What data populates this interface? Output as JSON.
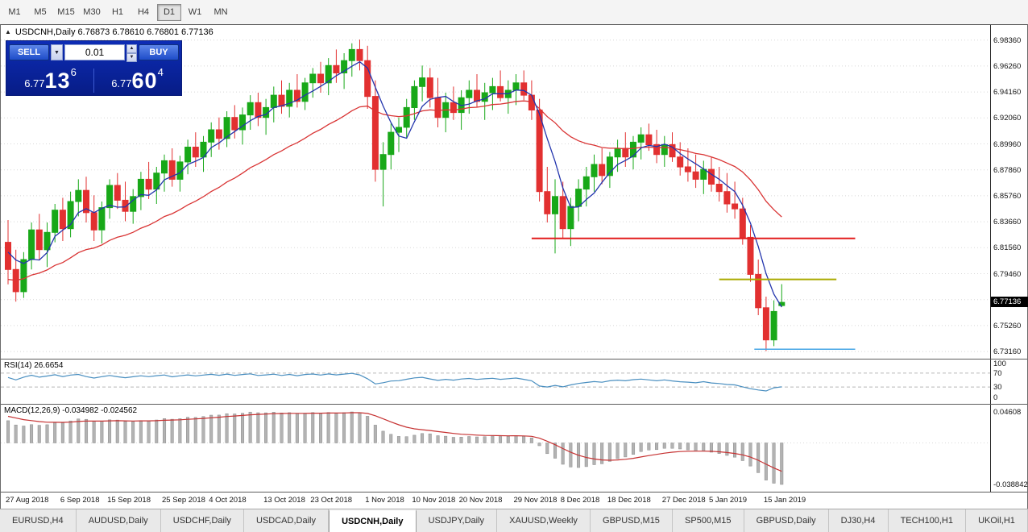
{
  "toolbar": {
    "timeframes": [
      {
        "label": "M1",
        "active": false
      },
      {
        "label": "M5",
        "active": false
      },
      {
        "label": "M15",
        "active": false
      },
      {
        "label": "M30",
        "active": false
      },
      {
        "label": "H1",
        "active": false
      },
      {
        "label": "H4",
        "active": false
      },
      {
        "label": "D1",
        "active": true
      },
      {
        "label": "W1",
        "active": false
      },
      {
        "label": "MN",
        "active": false
      }
    ]
  },
  "chart": {
    "header": "USDCNH,Daily 6.76873 6.78610 6.76801 6.77136",
    "symbol": "USDCNH",
    "period": "Daily",
    "open": "6.76873",
    "high": "6.78610",
    "low": "6.76801",
    "close": "6.77136"
  },
  "trade_panel": {
    "sell_label": "SELL",
    "buy_label": "BUY",
    "lot": "0.01",
    "sell_price": {
      "small": "6.77",
      "big": "13",
      "sup": "6"
    },
    "buy_price": {
      "small": "6.77",
      "big": "60",
      "sup": "4"
    }
  },
  "price_axis": {
    "labels": [
      "6.98360",
      "6.96260",
      "6.94160",
      "6.92060",
      "6.89960",
      "6.87860",
      "6.85760",
      "6.83660",
      "6.81560",
      "6.79460",
      "6.77360",
      "6.75260",
      "6.73160"
    ],
    "current": "6.77136"
  },
  "rsi": {
    "label": "RSI(14) 26.6654",
    "scale": [
      "100",
      "70",
      "30",
      "0"
    ],
    "levels": [
      70,
      30
    ]
  },
  "macd": {
    "label": "MACD(12,26,9) -0.034982 -0.024562",
    "scale_top": "0.04608",
    "scale_bottom": "-0.038842"
  },
  "date_axis": {
    "ticks": [
      {
        "index": 0,
        "label": "27 Aug 2018"
      },
      {
        "index": 7,
        "label": "6 Sep 2018"
      },
      {
        "index": 13,
        "label": "15 Sep 2018"
      },
      {
        "index": 20,
        "label": "25 Sep 2018"
      },
      {
        "index": 26,
        "label": "4 Oct 2018"
      },
      {
        "index": 33,
        "label": "13 Oct 2018"
      },
      {
        "index": 39,
        "label": "23 Oct 2018"
      },
      {
        "index": 46,
        "label": "1 Nov 2018"
      },
      {
        "index": 52,
        "label": "10 Nov 2018"
      },
      {
        "index": 58,
        "label": "20 Nov 2018"
      },
      {
        "index": 65,
        "label": "29 Nov 2018"
      },
      {
        "index": 71,
        "label": "8 Dec 2018"
      },
      {
        "index": 77,
        "label": "18 Dec 2018"
      },
      {
        "index": 84,
        "label": "27 Dec 2018"
      },
      {
        "index": 90,
        "label": "5 Jan 2019"
      },
      {
        "index": 97,
        "label": "15 Jan 2019"
      }
    ]
  },
  "tabs": [
    {
      "label": "EURUSD,H4",
      "active": false
    },
    {
      "label": "AUDUSD,Daily",
      "active": false
    },
    {
      "label": "USDCHF,Daily",
      "active": false
    },
    {
      "label": "USDCAD,Daily",
      "active": false
    },
    {
      "label": "USDCNH,Daily",
      "active": true
    },
    {
      "label": "USDJPY,Daily",
      "active": false
    },
    {
      "label": "XAUUSD,Weekly",
      "active": false
    },
    {
      "label": "GBPUSD,M15",
      "active": false
    },
    {
      "label": "SP500,M15",
      "active": false
    },
    {
      "label": "GBPUSD,Daily",
      "active": false
    },
    {
      "label": "DJ30,H4",
      "active": false
    },
    {
      "label": "TECH100,H1",
      "active": false
    },
    {
      "label": "UKOil,H1",
      "active": false
    }
  ],
  "chart_data": {
    "type": "candlestick",
    "symbol": "USDCNH",
    "timeframe": "Daily",
    "price_range": [
      6.7258,
      6.9958
    ],
    "candles": [
      [
        6.82,
        6.838,
        6.786,
        6.798
      ],
      [
        6.798,
        6.814,
        6.772,
        6.78
      ],
      [
        6.78,
        6.812,
        6.775,
        6.806
      ],
      [
        6.806,
        6.836,
        6.798,
        6.83
      ],
      [
        6.83,
        6.843,
        6.806,
        6.814
      ],
      [
        6.814,
        6.836,
        6.8,
        6.828
      ],
      [
        6.828,
        6.851,
        6.82,
        6.846
      ],
      [
        6.846,
        6.856,
        6.821,
        6.831
      ],
      [
        6.831,
        6.861,
        6.824,
        6.853
      ],
      [
        6.853,
        6.871,
        6.841,
        6.862
      ],
      [
        6.862,
        6.873,
        6.836,
        6.844
      ],
      [
        6.844,
        6.858,
        6.821,
        6.83
      ],
      [
        6.83,
        6.853,
        6.819,
        6.848
      ],
      [
        6.848,
        6.871,
        6.839,
        6.866
      ],
      [
        6.866,
        6.876,
        6.847,
        6.854
      ],
      [
        6.854,
        6.869,
        6.837,
        6.845
      ],
      [
        6.845,
        6.863,
        6.835,
        6.857
      ],
      [
        6.857,
        6.877,
        6.846,
        6.871
      ],
      [
        6.871,
        6.885,
        6.855,
        6.863
      ],
      [
        6.863,
        6.881,
        6.851,
        6.876
      ],
      [
        6.876,
        6.891,
        6.861,
        6.886
      ],
      [
        6.886,
        6.896,
        6.865,
        6.871
      ],
      [
        6.871,
        6.89,
        6.861,
        6.885
      ],
      [
        6.885,
        6.903,
        6.875,
        6.897
      ],
      [
        6.897,
        6.909,
        6.881,
        6.889
      ],
      [
        6.889,
        6.906,
        6.877,
        6.901
      ],
      [
        6.901,
        6.917,
        6.889,
        6.911
      ],
      [
        6.911,
        6.921,
        6.895,
        6.904
      ],
      [
        6.904,
        6.926,
        6.897,
        6.921
      ],
      [
        6.921,
        6.931,
        6.904,
        6.911
      ],
      [
        6.911,
        6.929,
        6.899,
        6.923
      ],
      [
        6.923,
        6.939,
        6.911,
        6.933
      ],
      [
        6.933,
        6.941,
        6.914,
        6.921
      ],
      [
        6.921,
        6.936,
        6.907,
        6.929
      ],
      [
        6.929,
        6.946,
        6.917,
        6.939
      ],
      [
        6.939,
        6.951,
        6.924,
        6.93
      ],
      [
        6.93,
        6.949,
        6.921,
        6.943
      ],
      [
        6.943,
        6.956,
        6.929,
        6.934
      ],
      [
        6.934,
        6.953,
        6.927,
        6.949
      ],
      [
        6.949,
        6.961,
        6.937,
        6.956
      ],
      [
        6.956,
        6.966,
        6.941,
        6.949
      ],
      [
        6.949,
        6.969,
        6.939,
        6.963
      ],
      [
        6.963,
        6.976,
        6.949,
        6.957
      ],
      [
        6.957,
        6.973,
        6.944,
        6.967
      ],
      [
        6.967,
        6.981,
        6.954,
        6.976
      ],
      [
        6.976,
        6.984,
        6.959,
        6.967
      ],
      [
        6.967,
        6.979,
        6.928,
        6.938
      ],
      [
        6.938,
        6.951,
        6.869,
        6.879
      ],
      [
        6.879,
        6.901,
        6.849,
        6.891
      ],
      [
        6.891,
        6.916,
        6.879,
        6.909
      ],
      [
        6.909,
        6.921,
        6.893,
        6.913
      ],
      [
        6.913,
        6.936,
        6.904,
        6.929
      ],
      [
        6.929,
        6.951,
        6.919,
        6.946
      ],
      [
        6.946,
        6.963,
        6.934,
        6.953
      ],
      [
        6.953,
        6.961,
        6.929,
        6.937
      ],
      [
        6.937,
        6.953,
        6.913,
        6.921
      ],
      [
        6.921,
        6.941,
        6.909,
        6.933
      ],
      [
        6.933,
        6.946,
        6.919,
        6.925
      ],
      [
        6.925,
        6.943,
        6.911,
        6.937
      ],
      [
        6.937,
        6.951,
        6.924,
        6.943
      ],
      [
        6.943,
        6.956,
        6.929,
        6.934
      ],
      [
        6.934,
        6.949,
        6.919,
        6.941
      ],
      [
        6.941,
        6.953,
        6.927,
        6.946
      ],
      [
        6.946,
        6.959,
        6.934,
        6.937
      ],
      [
        6.937,
        6.951,
        6.924,
        6.943
      ],
      [
        6.943,
        6.956,
        6.931,
        6.949
      ],
      [
        6.949,
        6.959,
        6.935,
        6.939
      ],
      [
        6.939,
        6.951,
        6.919,
        6.927
      ],
      [
        6.927,
        6.936,
        6.853,
        6.861
      ],
      [
        6.861,
        6.881,
        6.836,
        6.843
      ],
      [
        6.843,
        6.871,
        6.811,
        6.857
      ],
      [
        6.857,
        6.869,
        6.823,
        6.831
      ],
      [
        6.831,
        6.856,
        6.817,
        6.849
      ],
      [
        6.849,
        6.871,
        6.837,
        6.863
      ],
      [
        6.863,
        6.881,
        6.849,
        6.873
      ],
      [
        6.873,
        6.891,
        6.861,
        6.883
      ],
      [
        6.883,
        6.896,
        6.867,
        6.874
      ],
      [
        6.874,
        6.893,
        6.864,
        6.889
      ],
      [
        6.889,
        6.903,
        6.877,
        6.896
      ],
      [
        6.896,
        6.909,
        6.881,
        6.889
      ],
      [
        6.889,
        6.906,
        6.879,
        6.901
      ],
      [
        6.901,
        6.913,
        6.887,
        6.907
      ],
      [
        6.907,
        6.916,
        6.894,
        6.899
      ],
      [
        6.899,
        6.911,
        6.884,
        6.891
      ],
      [
        6.891,
        6.906,
        6.881,
        6.899
      ],
      [
        6.899,
        6.909,
        6.885,
        6.889
      ],
      [
        6.889,
        6.901,
        6.874,
        6.881
      ],
      [
        6.881,
        6.896,
        6.869,
        6.877
      ],
      [
        6.877,
        6.891,
        6.864,
        6.871
      ],
      [
        6.871,
        6.886,
        6.859,
        6.879
      ],
      [
        6.879,
        6.889,
        6.861,
        6.867
      ],
      [
        6.867,
        6.881,
        6.853,
        6.861
      ],
      [
        6.861,
        6.876,
        6.844,
        6.851
      ],
      [
        6.851,
        6.869,
        6.839,
        6.847
      ],
      [
        6.847,
        6.856,
        6.818,
        6.824
      ],
      [
        6.824,
        6.834,
        6.788,
        6.794
      ],
      [
        6.794,
        6.806,
        6.761,
        6.767
      ],
      [
        6.767,
        6.776,
        6.732,
        6.741
      ],
      [
        6.741,
        6.773,
        6.736,
        6.764
      ],
      [
        6.76873,
        6.7861,
        6.76801,
        6.77136
      ]
    ],
    "indicator_warmup_closes": [
      6.7,
      6.712,
      6.705,
      6.72,
      6.732,
      6.726,
      6.74,
      6.752,
      6.745,
      6.758,
      6.77,
      6.762,
      6.775,
      6.786,
      6.78,
      6.792,
      6.802,
      6.795,
      6.806,
      6.815,
      6.808,
      6.818,
      6.826,
      6.818,
      6.81,
      6.8,
      6.812,
      6.82,
      6.812,
      6.818
    ],
    "moving_averages": [
      {
        "type": "sma",
        "period": 5,
        "color": "#2335ad"
      },
      {
        "type": "ema",
        "period": 25,
        "color": "#d93434"
      }
    ],
    "hlines": [
      {
        "name": "resistance-line",
        "price": 6.8232,
        "color": "#e21d1d",
        "width": 2,
        "from": 67.0,
        "to": 108.4
      },
      {
        "name": "broken-support-line",
        "price": 6.79,
        "color": "#aaaa00",
        "width": 2,
        "from": 91.0,
        "to": 106.0
      },
      {
        "name": "support-line",
        "price": 6.7335,
        "color": "#46a6e6",
        "width": 1.5,
        "from": 95.5,
        "to": 108.4
      }
    ],
    "colors": {
      "up": "#18a818",
      "down": "#e23030",
      "grid": "#d8d8d8",
      "rsi_line": "#4a8fc0",
      "rsi_level": "#b8b8b8",
      "macd_hist_fill": "#b3b3b3",
      "macd_hist_stroke": "#8c8c8c",
      "macd_signal": "#c63232"
    }
  }
}
